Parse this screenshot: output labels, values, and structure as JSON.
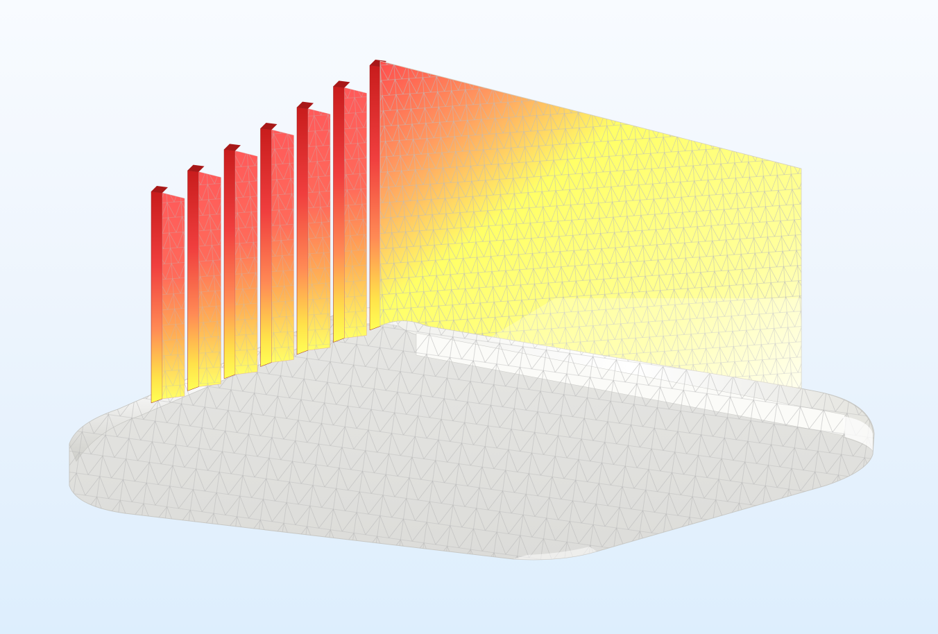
{
  "scene": {
    "type": "3d-fem-result",
    "object": "heat-sink",
    "fin_count": 7,
    "colormap": [
      "#b51212",
      "#e83a3a",
      "#ff6a5a",
      "#ff9a60",
      "#ffd35a",
      "#ffff66",
      "#ffffcc",
      "#ffffff"
    ],
    "base_color": "#e6e6e3",
    "mesh_line_color": "#b9b9b9",
    "background_top": "#f8fbff",
    "background_bottom": "#ddeefd"
  }
}
